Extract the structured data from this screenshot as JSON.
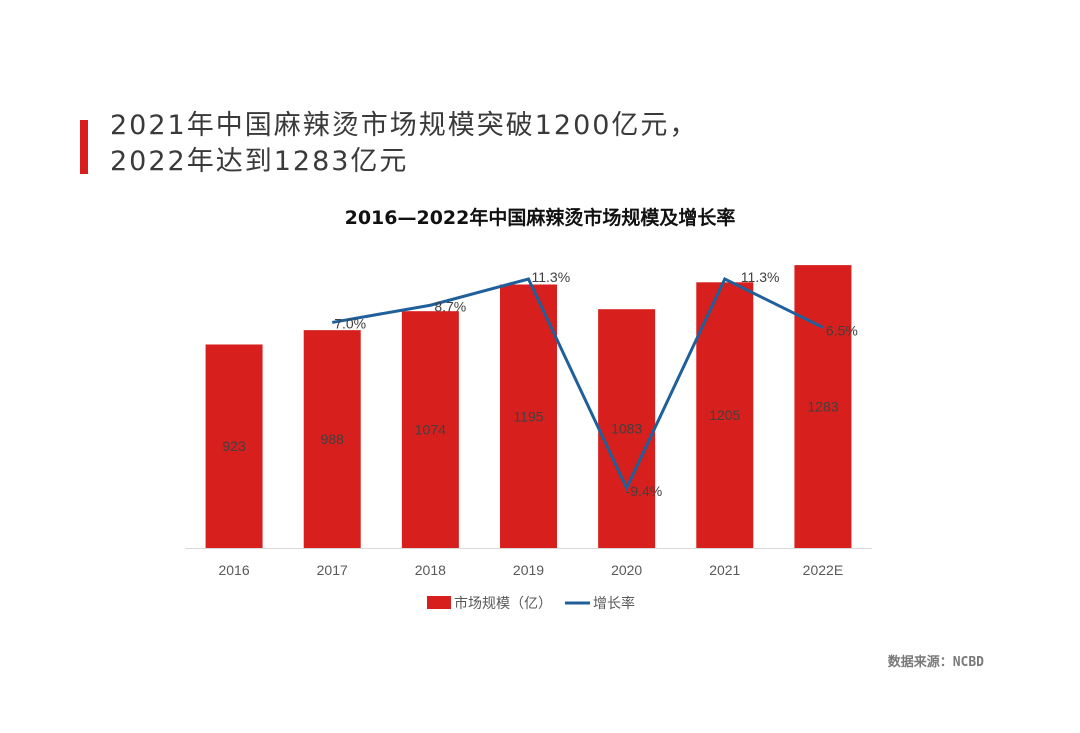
{
  "heading": {
    "line1": "2021年中国麻辣烫市场规模突破1200亿元，",
    "line2": "2022年达到1283亿元"
  },
  "source": "数据来源：NCBD",
  "colors": {
    "accent": "#d7201e",
    "line": "#1f5f9a"
  },
  "chart_data": {
    "type": "bar+line",
    "title": "2016—2022年中国麻辣烫市场规模及增长率",
    "categories": [
      "2016",
      "2017",
      "2018",
      "2019",
      "2020",
      "2021",
      "2022E"
    ],
    "series": [
      {
        "name": "市场规模（亿）",
        "type": "bar",
        "values": [
          923,
          988,
          1074,
          1195,
          1083,
          1205,
          1283
        ],
        "labels": [
          "923",
          "988",
          "1074",
          "1195",
          "1083",
          "1205",
          "1283"
        ]
      },
      {
        "name": "增长率",
        "type": "line",
        "values": [
          null,
          7.0,
          8.7,
          11.3,
          -9.4,
          11.3,
          6.5
        ],
        "labels": [
          null,
          "7.0%",
          "8.7%",
          "11.3%",
          "-9.4%",
          "11.3%",
          "6.5%"
        ]
      }
    ],
    "bar_axis_range": [
      0,
      1300
    ],
    "rate_axis_range": [
      -12,
      14
    ],
    "grid": false,
    "legend_position": "bottom"
  }
}
